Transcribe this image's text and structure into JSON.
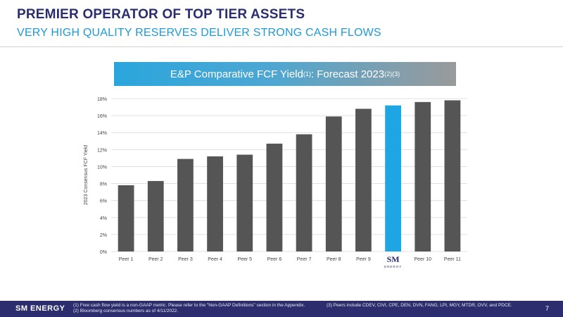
{
  "header": {
    "title": "PREMIER OPERATOR OF TOP TIER ASSETS",
    "subtitle": "VERY HIGH QUALITY RESERVES DELIVER STRONG CASH FLOWS"
  },
  "banner": {
    "text_part1": "E&P Comparative  FCF Yield",
    "sup1": "(1)",
    "text_part2": ": Forecast 2023",
    "sup2": "(2)(3)"
  },
  "chart_data": {
    "type": "bar",
    "title": "E&P Comparative  FCF Yield(1): Forecast 2023(2)(3)",
    "categories": [
      "Peer 1",
      "Peer 2",
      "Peer 3",
      "Peer 4",
      "Peer 5",
      "Peer 6",
      "Peer 7",
      "Peer 8",
      "Peer 9",
      "SM ENERGY",
      "Peer 10",
      "Peer 11"
    ],
    "values": [
      7.8,
      8.3,
      10.9,
      11.2,
      11.4,
      12.7,
      13.8,
      15.9,
      16.8,
      17.2,
      17.6,
      17.8
    ],
    "ylabel": "2023 Consensus FCF Yield",
    "ylim": [
      0,
      18
    ],
    "yticks": [
      0,
      2,
      4,
      6,
      8,
      10,
      12,
      14,
      16,
      18
    ],
    "ytick_labels": [
      "0%",
      "2%",
      "4%",
      "6%",
      "8%",
      "10%",
      "12%",
      "14%",
      "16%",
      "18%"
    ],
    "grid": true,
    "colors": {
      "default": "#555555",
      "highlight": "#1ea6e4",
      "highlight_index": 9,
      "grid": "#e0e0e0"
    },
    "highlight_logo": {
      "mark": "SM",
      "word": "ENERGY",
      "color": "#2b2d6e"
    }
  },
  "footer": {
    "logo": "SM ENERGY",
    "note1": "(1)    Free cash flow yield is a non-GAAP metric.  Please refer to the \"Non-GAAP Definitions\" section in the Appendix.",
    "note2": "(2)    Bloomberg consensus numbers as of 4/11/2022.",
    "note3": "(3)    Peers include CDEV, CIVI, CPE, DEN, DVN, FANG, LPI, MGY, MTDR, OVV, and PDCE.",
    "page": "7"
  }
}
